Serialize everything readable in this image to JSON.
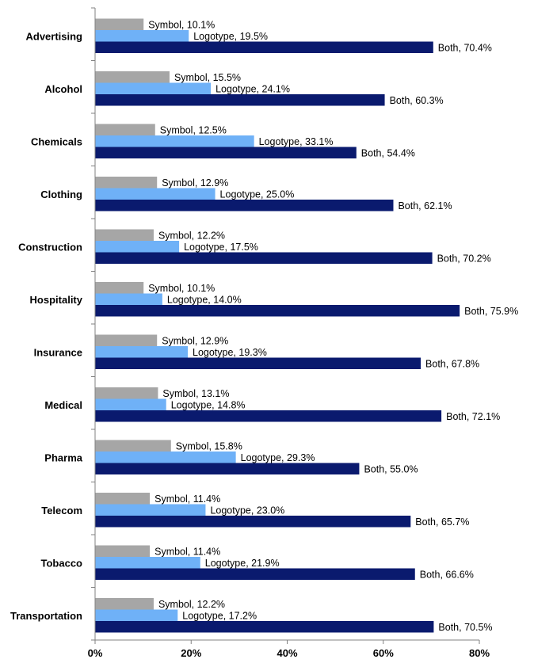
{
  "chart_data": {
    "type": "bar",
    "orientation": "horizontal",
    "categories": [
      "Advertising",
      "Alcohol",
      "Chemicals",
      "Clothing",
      "Construction",
      "Hospitality",
      "Insurance",
      "Medical",
      "Pharma",
      "Telecom",
      "Tobacco",
      "Transportation"
    ],
    "series": [
      {
        "name": "Symbol",
        "color": "#a6a6a6",
        "values": [
          10.1,
          15.5,
          12.5,
          12.9,
          12.2,
          10.1,
          12.9,
          13.1,
          15.8,
          11.4,
          11.4,
          12.2
        ]
      },
      {
        "name": "Logotype",
        "color": "#6fb1f7",
        "values": [
          19.5,
          24.1,
          33.1,
          25.0,
          17.5,
          14.0,
          19.3,
          14.8,
          29.3,
          23.0,
          21.9,
          17.2
        ]
      },
      {
        "name": "Both",
        "color": "#0a1a6e",
        "values": [
          70.4,
          60.3,
          54.4,
          62.1,
          70.2,
          75.9,
          67.8,
          72.1,
          55.0,
          65.7,
          66.6,
          70.5
        ]
      }
    ],
    "data_labels": [
      [
        "Symbol, 10.1%",
        "Logotype, 19.5%",
        "Both, 70.4%"
      ],
      [
        "Symbol, 15.5%",
        "Logotype, 24.1%",
        "Both, 60.3%"
      ],
      [
        "Symbol, 12.5%",
        "Logotype, 33.1%",
        "Both, 54.4%"
      ],
      [
        "Symbol, 12.9%",
        "Logotype, 25.0%",
        "Both, 62.1%"
      ],
      [
        "Symbol, 12.2%",
        "Logotype, 17.5%",
        "Both, 70.2%"
      ],
      [
        "Symbol, 10.1%",
        "Logotype, 14.0%",
        "Both, 75.9%"
      ],
      [
        "Symbol, 12.9%",
        "Logotype, 19.3%",
        "Both, 67.8%"
      ],
      [
        "Symbol, 13.1%",
        "Logotype, 14.8%",
        "Both, 72.1%"
      ],
      [
        "Symbol, 15.8%",
        "Logotype, 29.3%",
        "Both, 55.0%"
      ],
      [
        "Symbol, 11.4%",
        "Logotype, 23.0%",
        "Both, 65.7%"
      ],
      [
        "Symbol, 11.4%",
        "Logotype, 21.9%",
        "Both, 66.6%"
      ],
      [
        "Symbol, 12.2%",
        "Logotype, 17.2%",
        "Both, 70.5%"
      ]
    ],
    "x_ticks": [
      "0%",
      "20%",
      "40%",
      "60%",
      "80%"
    ],
    "xlim": [
      0,
      80
    ],
    "grid": false,
    "legend": "none",
    "title": "",
    "xlabel": "",
    "ylabel": ""
  }
}
